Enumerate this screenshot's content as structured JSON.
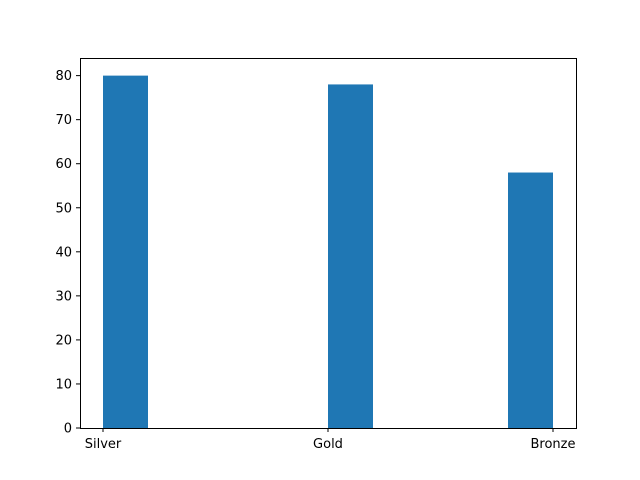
{
  "chart_data": {
    "type": "bar",
    "title": "",
    "xlabel": "",
    "ylabel": "",
    "categories": [
      "Silver",
      "Gold",
      "Bronze"
    ],
    "values": [
      80,
      78,
      58
    ],
    "ylim": [
      0,
      84
    ],
    "yticks": [
      0,
      10,
      20,
      30,
      40,
      50,
      60,
      70,
      80
    ],
    "grid": false,
    "legend": "none",
    "bar_color": "#1f77b4"
  }
}
